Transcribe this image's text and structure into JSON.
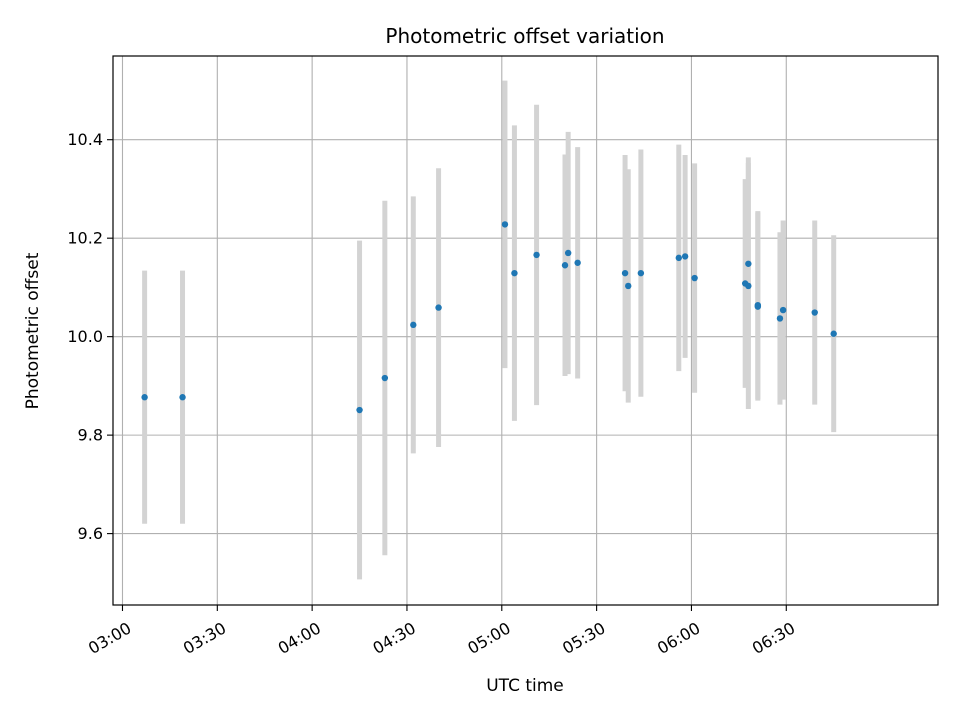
{
  "chart_data": {
    "type": "scatter",
    "title": "Photometric offset variation",
    "xlabel": "UTC time",
    "ylabel": "Photometric offset",
    "xlim": [
      "02:57",
      "07:18"
    ],
    "ylim": [
      9.455,
      10.57
    ],
    "x_ticks": [
      "03:00",
      "03:30",
      "04:00",
      "04:30",
      "05:00",
      "05:30",
      "06:00",
      "06:30"
    ],
    "y_ticks": [
      "9.6",
      "9.8",
      "10.0",
      "10.2",
      "10.4"
    ],
    "grid": true,
    "colors": {
      "point": "#1f77b4",
      "errorbar": "#d3d3d3",
      "grid": "#b0b0b0",
      "axis": "#000000"
    },
    "points": [
      {
        "x": "03:07",
        "y": 9.877,
        "err": 0.257
      },
      {
        "x": "03:19",
        "y": 9.877,
        "err": 0.257
      },
      {
        "x": "04:15",
        "y": 9.851,
        "err": 0.344
      },
      {
        "x": "04:23",
        "y": 9.916,
        "err": 0.36
      },
      {
        "x": "04:32",
        "y": 10.024,
        "err": 0.261
      },
      {
        "x": "04:40",
        "y": 10.059,
        "err": 0.283
      },
      {
        "x": "05:01",
        "y": 10.228,
        "err": 0.292
      },
      {
        "x": "05:04",
        "y": 10.129,
        "err": 0.3
      },
      {
        "x": "05:11",
        "y": 10.166,
        "err": 0.305
      },
      {
        "x": "05:20",
        "y": 10.145,
        "err": 0.225
      },
      {
        "x": "05:21",
        "y": 10.17,
        "err": 0.246
      },
      {
        "x": "05:24",
        "y": 10.15,
        "err": 0.235
      },
      {
        "x": "05:39",
        "y": 10.129,
        "err": 0.24
      },
      {
        "x": "05:40",
        "y": 10.103,
        "err": 0.237
      },
      {
        "x": "05:44",
        "y": 10.129,
        "err": 0.251
      },
      {
        "x": "05:56",
        "y": 10.16,
        "err": 0.23
      },
      {
        "x": "05:58",
        "y": 10.163,
        "err": 0.206
      },
      {
        "x": "06:01",
        "y": 10.119,
        "err": 0.233
      },
      {
        "x": "06:17",
        "y": 10.108,
        "err": 0.212
      },
      {
        "x": "06:18",
        "y": 10.148,
        "err": 0.216
      },
      {
        "x": "06:18",
        "y": 10.103,
        "err": 0.25
      },
      {
        "x": "06:21",
        "y": 10.064,
        "err": 0.191
      },
      {
        "x": "06:21",
        "y": 10.061,
        "err": 0.191
      },
      {
        "x": "06:28",
        "y": 10.037,
        "err": 0.175
      },
      {
        "x": "06:29",
        "y": 10.054,
        "err": 0.182
      },
      {
        "x": "06:39",
        "y": 10.049,
        "err": 0.187
      },
      {
        "x": "06:45",
        "y": 10.006,
        "err": 0.2
      }
    ]
  }
}
